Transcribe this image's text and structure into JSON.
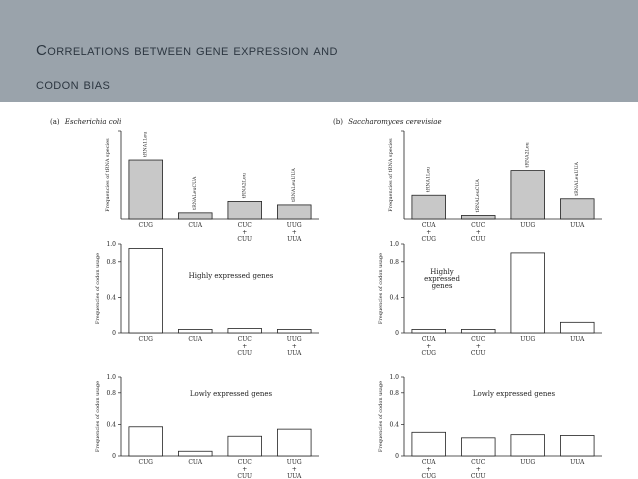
{
  "slide": {
    "title_line1": "Correlations between gene expression and",
    "title_line2": "codon bias",
    "header_color": "#9aa3ab"
  },
  "panels": {
    "a": {
      "prefix": "(a)",
      "organism": "Escherichia coli"
    },
    "b": {
      "prefix": "(b)",
      "organism": "Saccharomyces cerevisiae"
    }
  },
  "chart_data": [
    {
      "id": "a-trna",
      "panel": "a",
      "type": "bar",
      "ylabel": "Frequencies of tRNA species",
      "ylim": [
        0,
        1.0
      ],
      "yticks": [],
      "ytick_labels": [],
      "show_ytick_labels": false,
      "annotation": "",
      "categories": [
        "CUG",
        "CUA",
        "CUC + CUU",
        "UUG + UUA"
      ],
      "category_lines": [
        [
          "CUG"
        ],
        [
          "CUA"
        ],
        [
          "CUC",
          "+",
          "CUU"
        ],
        [
          "UUG",
          "+",
          "UUA"
        ]
      ],
      "bar_labels": [
        "tRNA1Leu",
        "tRNALeuCUA",
        "tRNA2Leu",
        "tRNALeuUUA"
      ],
      "values": [
        0.67,
        0.07,
        0.2,
        0.16
      ],
      "fill": "#c8c8c8"
    },
    {
      "id": "a-high",
      "panel": "a",
      "type": "bar",
      "ylabel": "Frequencies of codon usage",
      "ylim": [
        0,
        1.0
      ],
      "yticks": [
        0,
        0.4,
        0.8,
        1.0
      ],
      "ytick_labels": [
        "0",
        "0.4",
        "0.8",
        "1.0"
      ],
      "show_ytick_labels": true,
      "annotation": "Highly expressed genes",
      "categories": [
        "CUG",
        "CUA",
        "CUC + CUU",
        "UUG + UUA"
      ],
      "category_lines": [
        [
          "CUG"
        ],
        [
          "CUA"
        ],
        [
          "CUC",
          "+",
          "CUU"
        ],
        [
          "UUG",
          "+",
          "UUA"
        ]
      ],
      "bar_labels": [],
      "values": [
        0.95,
        0.04,
        0.05,
        0.04
      ],
      "fill": "#ffffff"
    },
    {
      "id": "a-low",
      "panel": "a",
      "type": "bar",
      "ylabel": "Frequencies of codon usage",
      "ylim": [
        0,
        1.0
      ],
      "yticks": [
        0,
        0.4,
        0.8,
        1.0
      ],
      "ytick_labels": [
        "0",
        "0.4",
        "0.8",
        "1.0"
      ],
      "show_ytick_labels": true,
      "annotation": "Lowly expressed genes",
      "categories": [
        "CUG",
        "CUA",
        "CUC + CUU",
        "UUG + UUA"
      ],
      "category_lines": [
        [
          "CUG"
        ],
        [
          "CUA"
        ],
        [
          "CUC",
          "+",
          "CUU"
        ],
        [
          "UUG",
          "+",
          "UUA"
        ]
      ],
      "bar_labels": [],
      "values": [
        0.37,
        0.06,
        0.25,
        0.34
      ],
      "fill": "#ffffff"
    },
    {
      "id": "b-trna",
      "panel": "b",
      "type": "bar",
      "ylabel": "Frequencies of tRNA species",
      "ylim": [
        0,
        1.0
      ],
      "yticks": [],
      "ytick_labels": [],
      "show_ytick_labels": false,
      "annotation": "",
      "categories": [
        "CUA + CUG",
        "CUC + CUU",
        "UUG",
        "UUA"
      ],
      "category_lines": [
        [
          "CUA",
          "+",
          "CUG"
        ],
        [
          "CUC",
          "+",
          "CUU"
        ],
        [
          "UUG"
        ],
        [
          "UUA"
        ]
      ],
      "bar_labels": [
        "tRNA1Leu",
        "tRNALeuCUA",
        "tRNA2Leu",
        "tRNALeuUUA"
      ],
      "values": [
        0.27,
        0.04,
        0.55,
        0.23
      ],
      "fill": "#c8c8c8"
    },
    {
      "id": "b-high",
      "panel": "b",
      "type": "bar",
      "ylabel": "Frequencies of codon usage",
      "ylim": [
        0,
        1.0
      ],
      "yticks": [
        0,
        0.4,
        0.8,
        1.0
      ],
      "ytick_labels": [
        "0",
        "0.4",
        "0.8",
        "1.0"
      ],
      "show_ytick_labels": true,
      "annotation": "Highly expressed genes",
      "annotation_lines": [
        "Highly",
        "expressed",
        "genes"
      ],
      "categories": [
        "CUA + CUG",
        "CUC + CUU",
        "UUG",
        "UUA"
      ],
      "category_lines": [
        [
          "CUA",
          "+",
          "CUG"
        ],
        [
          "CUC",
          "+",
          "CUU"
        ],
        [
          "UUG"
        ],
        [
          "UUA"
        ]
      ],
      "bar_labels": [],
      "values": [
        0.04,
        0.04,
        0.9,
        0.12
      ],
      "fill": "#ffffff"
    },
    {
      "id": "b-low",
      "panel": "b",
      "type": "bar",
      "ylabel": "Frequencies of codon usage",
      "ylim": [
        0,
        1.0
      ],
      "yticks": [
        0,
        0.4,
        0.8,
        1.0
      ],
      "ytick_labels": [
        "0",
        "0.4",
        "0.8",
        "1.0"
      ],
      "show_ytick_labels": true,
      "annotation": "Lowly expressed genes",
      "categories": [
        "CUA + CUG",
        "CUC + CUU",
        "UUG",
        "UUA"
      ],
      "category_lines": [
        [
          "CUA",
          "+",
          "CUG"
        ],
        [
          "CUC",
          "+",
          "CUU"
        ],
        [
          "UUG"
        ],
        [
          "UUA"
        ]
      ],
      "bar_labels": [],
      "values": [
        0.3,
        0.23,
        0.27,
        0.26
      ],
      "fill": "#ffffff"
    }
  ]
}
